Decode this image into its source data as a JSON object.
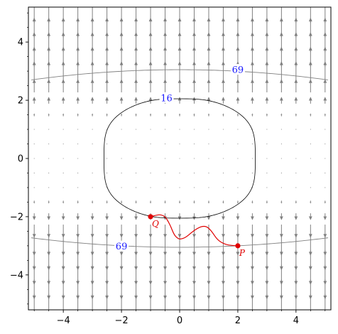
{
  "chart_data": {
    "type": "vector-field-contour",
    "title": "",
    "xlabel": "",
    "ylabel": "",
    "xlim": [
      -5.2,
      5.2
    ],
    "ylim": [
      -5.2,
      5.2
    ],
    "x_ticks": [
      -4,
      -2,
      0,
      2,
      4
    ],
    "y_ticks": [
      -4,
      -2,
      0,
      2,
      4
    ],
    "x_tick_labels": [
      "−4",
      "−2",
      "0",
      "2",
      "4"
    ],
    "y_tick_labels": [
      "−4",
      "−2",
      "0",
      "2",
      "4"
    ],
    "minor_tick_step": 0.5,
    "grid": false,
    "vector_field": {
      "x_range": [
        -5,
        5
      ],
      "y_range": [
        -5,
        5
      ],
      "step": 0.5,
      "direction_rule": "vertical, pointing away from y = 0",
      "color": "#808080"
    },
    "contours": [
      {
        "level_label": "69",
        "color": "#808080",
        "label_at": [
          {
            "x": 2.0,
            "y": 3.05
          },
          {
            "x": -2.0,
            "y": -3.02
          }
        ]
      },
      {
        "level_label": "16",
        "color": "#000000",
        "label_at": [
          {
            "x": -0.45,
            "y": 2.08
          }
        ]
      }
    ],
    "points": [
      {
        "label": "P",
        "x": 2.0,
        "y": -3.0
      },
      {
        "label": "Q",
        "x": -1.0,
        "y": -2.0
      }
    ],
    "path": {
      "color": "#e00000",
      "x": [
        2.0,
        1.8,
        1.55,
        1.3,
        1.1,
        0.95,
        0.8,
        0.6,
        0.4,
        0.2,
        0.0,
        -0.1,
        -0.2,
        -0.3,
        -0.4,
        -0.5,
        -0.6,
        -0.7,
        -0.85,
        -1.0
      ],
      "y": [
        -3.0,
        -2.99,
        -2.95,
        -2.8,
        -2.5,
        -2.35,
        -2.32,
        -2.4,
        -2.55,
        -2.72,
        -2.78,
        -2.72,
        -2.6,
        -2.35,
        -2.15,
        -2.0,
        -1.95,
        -1.93,
        -1.96,
        -2.0
      ]
    },
    "colors": {
      "field": "#808080",
      "contour_outer": "#808080",
      "contour_inner": "#000000",
      "contour_label": "#1a1aff",
      "path": "#e00000",
      "axes": "#000000"
    }
  }
}
